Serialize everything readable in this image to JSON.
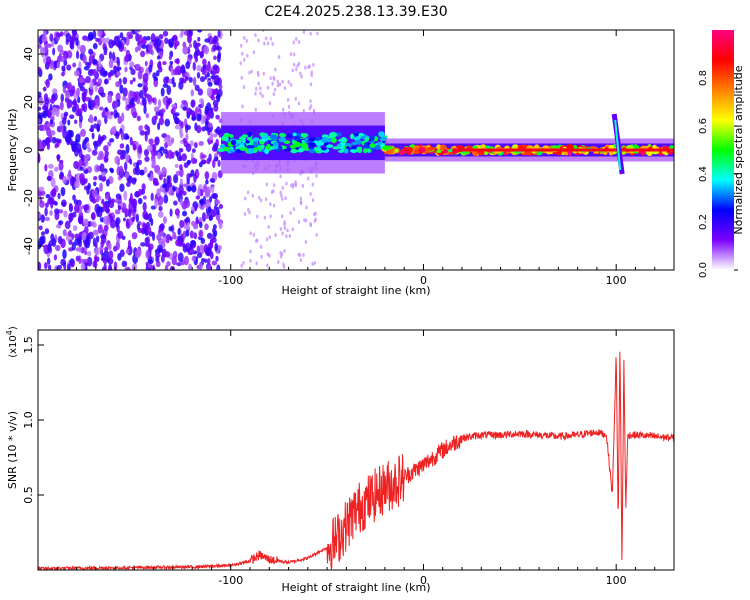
{
  "title": "C2E4.2025.238.13.39.E30",
  "chart_data": [
    {
      "type": "heatmap",
      "name": "spectrogram",
      "xlabel": "Height of straight line (km)",
      "ylabel": "Frequency (Hz)",
      "xlim": [
        -200,
        130
      ],
      "ylim": [
        -50,
        50
      ],
      "xticks": [
        -100,
        0,
        100
      ],
      "xtick_labels": [
        "-100",
        "0",
        "100"
      ],
      "yticks": [
        -40,
        -20,
        0,
        20,
        40
      ],
      "ytick_labels": [
        "-40",
        "-20",
        "0",
        "20",
        "40"
      ],
      "colorbar": {
        "label": "Normalized spectral amplitude",
        "range": [
          0,
          1
        ],
        "ticks": [
          0.0,
          0.2,
          0.4,
          0.6,
          0.8
        ],
        "tick_labels": [
          "0.0",
          "0.2",
          "0.4",
          "0.6",
          "0.8"
        ],
        "colors": [
          "#ffffff",
          "#7b00ff",
          "#0000ff",
          "#00ffff",
          "#00ff00",
          "#ffff00",
          "#ff8000",
          "#ff0000",
          "#ff0080"
        ]
      },
      "features": [
        {
          "x_range": [
            -200,
            -105
          ],
          "description": "broadband speckle",
          "amplitude": 0.15
        },
        {
          "x_range": [
            -105,
            -20
          ],
          "center_hz": 3,
          "width_hz": 8,
          "amplitude": 0.45
        },
        {
          "x_range": [
            -20,
            130
          ],
          "center_hz": 0,
          "width_hz": 3,
          "amplitude": 0.9
        },
        {
          "x_center": 100,
          "description": "frequency spike",
          "freq_range": [
            -10,
            15
          ]
        }
      ]
    },
    {
      "type": "line",
      "name": "snr",
      "xlabel": "Height of straight line (km)",
      "ylabel": "SNR (10 * v/v)",
      "yscale_label": "(x10",
      "yscale_exponent": "4",
      "xlim": [
        -200,
        130
      ],
      "ylim": [
        0,
        1.6
      ],
      "xticks": [
        -100,
        0,
        100
      ],
      "xtick_labels": [
        "-100",
        "0",
        "100"
      ],
      "yticks": [
        0.5,
        1.0,
        1.5
      ],
      "ytick_labels": [
        "0.5",
        "1.0",
        "1.5"
      ],
      "color": "#ee2222",
      "series": [
        {
          "name": "SNR",
          "x": [
            -200,
            -160,
            -120,
            -100,
            -90,
            -85,
            -80,
            -70,
            -60,
            -50,
            -45,
            -40,
            -35,
            -30,
            -25,
            -20,
            -15,
            -10,
            -5,
            0,
            10,
            20,
            30,
            40,
            50,
            60,
            70,
            80,
            90,
            95,
            98,
            100,
            101,
            102,
            103,
            104,
            105,
            106,
            110,
            120,
            130
          ],
          "values": [
            0.01,
            0.015,
            0.02,
            0.03,
            0.06,
            0.1,
            0.07,
            0.05,
            0.08,
            0.15,
            0.2,
            0.3,
            0.4,
            0.45,
            0.5,
            0.55,
            0.58,
            0.62,
            0.66,
            0.7,
            0.8,
            0.88,
            0.9,
            0.9,
            0.91,
            0.9,
            0.89,
            0.9,
            0.92,
            0.9,
            0.5,
            1.45,
            0.3,
            1.5,
            0.02,
            1.4,
            0.4,
            0.9,
            0.9,
            0.89,
            0.88
          ]
        }
      ]
    }
  ]
}
